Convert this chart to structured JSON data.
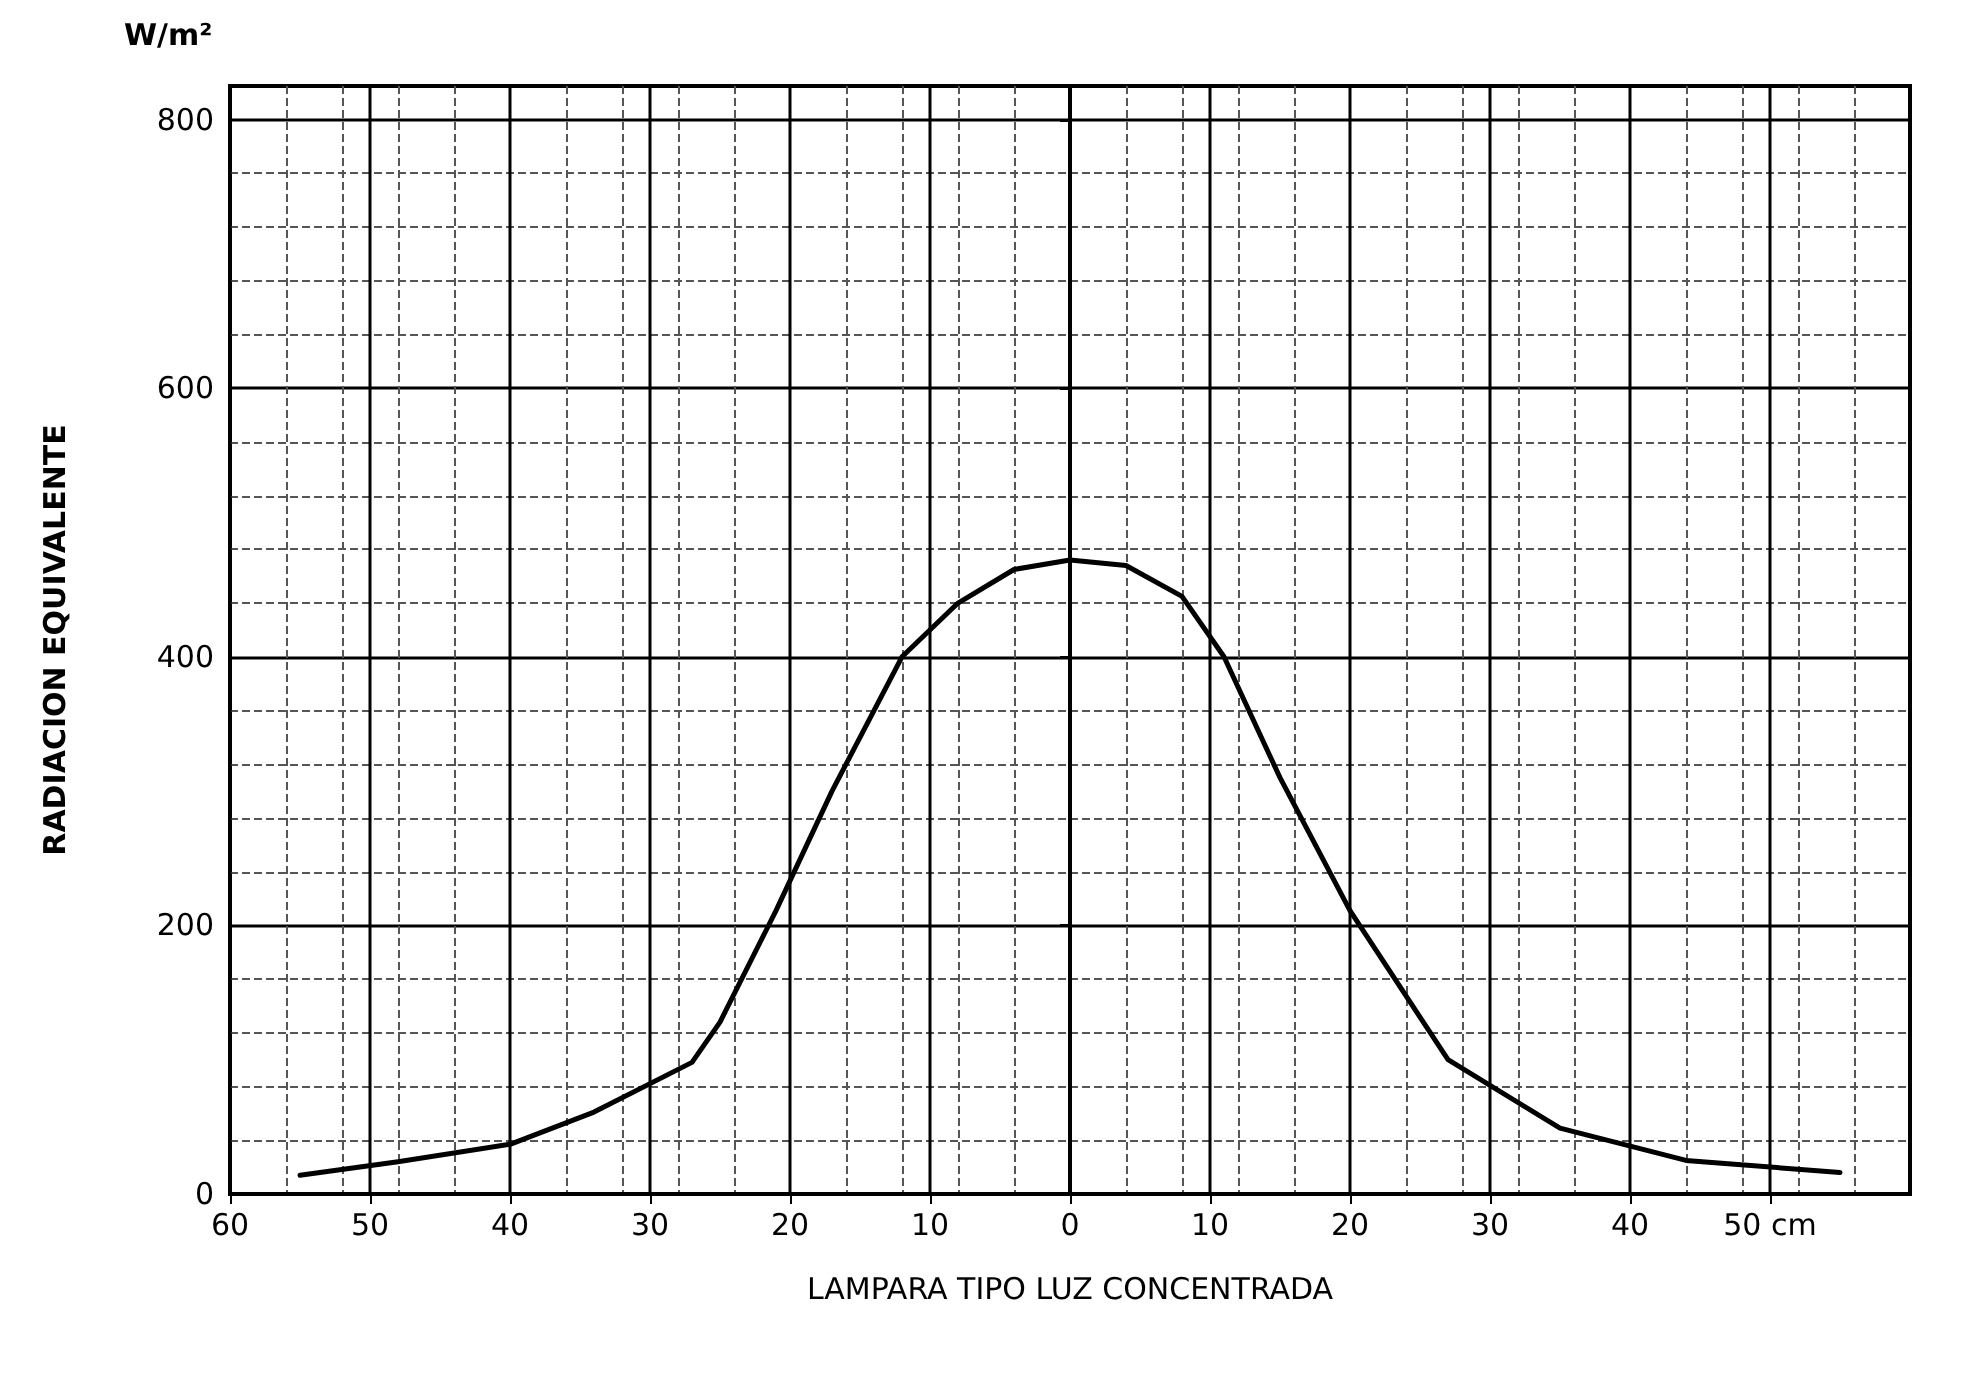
{
  "chart_data": {
    "type": "line",
    "xlabel": "LAMPARA TIPO LUZ CONCENTRADA",
    "ylabel": "RADIACION EQUIVALENTE",
    "annotations": [
      "W/m²"
    ],
    "x": [
      -55,
      -48,
      -40,
      -34,
      -27,
      -25,
      -21,
      -17,
      -12,
      -8,
      -4,
      0,
      4,
      8,
      11,
      15,
      20,
      27,
      35,
      44,
      55
    ],
    "series": [
      {
        "color": "#000000",
        "values": [
          14,
          24,
          37,
          61,
          98,
          128,
          211,
          300,
          400,
          440,
          465,
          472,
          468,
          445,
          400,
          310,
          211,
          100,
          49,
          25,
          16
        ]
      }
    ],
    "xlim": [
      -60,
      60
    ],
    "xticks": [
      {
        "value": -60,
        "label": "60"
      },
      {
        "value": -50,
        "label": "50"
      },
      {
        "value": -40,
        "label": "40"
      },
      {
        "value": -30,
        "label": "30"
      },
      {
        "value": -20,
        "label": "20"
      },
      {
        "value": -10,
        "label": "10"
      },
      0,
      {
        "value": 10,
        "label": "10"
      },
      {
        "value": 20,
        "label": "20"
      },
      {
        "value": 30,
        "label": "30"
      },
      {
        "value": 40,
        "label": "40"
      },
      {
        "value": 50,
        "label": "50 cm"
      }
    ],
    "ylim": [
      0,
      825
    ],
    "yticks": [
      0,
      200,
      400,
      600,
      800
    ],
    "grid": true,
    "marker": "none",
    "line_style": "solid"
  }
}
